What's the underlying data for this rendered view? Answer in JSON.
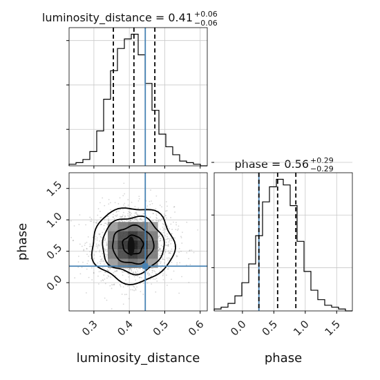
{
  "chart_data": [
    {
      "type": "histogram",
      "panel": "luminosity_distance-marginal",
      "title": {
        "param": "luminosity_distance",
        "median": "0.41",
        "plus": "+0.06",
        "minus": "−0.06"
      },
      "xlim": [
        0.23,
        0.62
      ],
      "bin_edges": [
        0.23,
        0.2495,
        0.269,
        0.2885,
        0.308,
        0.3275,
        0.347,
        0.3665,
        0.386,
        0.4055,
        0.425,
        0.4445,
        0.464,
        0.4835,
        0.503,
        0.5225,
        0.542,
        0.5615,
        0.581,
        0.6005,
        0.62
      ],
      "counts": [
        1,
        2,
        4,
        9,
        22,
        42,
        60,
        74,
        80,
        83,
        70,
        52,
        35,
        20,
        12,
        7,
        3,
        2,
        1,
        0
      ],
      "quantiles": [
        0.355,
        0.413,
        0.472
      ],
      "truth": 0.445,
      "yticks": [
        23,
        51,
        79
      ],
      "yticklabels": [
        "",
        "",
        ""
      ],
      "xticks": [
        0.3,
        0.4,
        0.5,
        0.6
      ],
      "xticklabels": [
        "",
        "",
        "",
        ""
      ],
      "grid": true
    },
    {
      "type": "histogram",
      "panel": "phase-marginal",
      "title": {
        "param": "phase",
        "median": "0.56",
        "plus": "+0.29",
        "minus": "−0.29"
      },
      "xlim": [
        -0.45,
        1.75
      ],
      "bin_edges": [
        -0.45,
        -0.34,
        -0.23,
        -0.12,
        -0.01,
        0.1,
        0.21,
        0.32,
        0.43,
        0.54,
        0.65,
        0.76,
        0.87,
        0.98,
        1.09,
        1.2,
        1.31,
        1.42,
        1.53,
        1.64,
        1.75
      ],
      "counts": [
        1,
        2,
        4,
        8,
        15,
        25,
        40,
        58,
        66,
        70,
        67,
        56,
        37,
        21,
        11,
        6,
        3,
        2,
        1,
        0
      ],
      "quantiles": [
        0.262,
        0.56,
        0.85
      ],
      "truth": 0.262,
      "yticks": [
        23,
        51,
        79
      ],
      "yticklabels": [
        "",
        "",
        ""
      ],
      "xticks": [
        0.0,
        0.5,
        1.0,
        1.5
      ],
      "xticklabels": [
        "0.0",
        "0.5",
        "1.0",
        "1.5"
      ],
      "xlabel": "phase",
      "grid": true
    },
    {
      "type": "scatter",
      "panel": "2d-posterior",
      "x_param": "luminosity_distance",
      "y_param": "phase",
      "xlim": [
        0.23,
        0.62
      ],
      "ylim": [
        -0.45,
        1.75
      ],
      "xticks": [
        0.3,
        0.4,
        0.5,
        0.6
      ],
      "xticklabels": [
        "0.3",
        "0.4",
        "0.5",
        "0.6"
      ],
      "yticks": [
        0.0,
        0.5,
        1.0,
        1.5
      ],
      "yticklabels": [
        "0.0",
        "0.5",
        "1.0",
        "1.5"
      ],
      "xlabel": "luminosity_distance",
      "ylabel": "phase",
      "center": [
        0.41,
        0.6
      ],
      "sigma": [
        0.058,
        0.3
      ],
      "contour_levels": [
        0.5,
        1.0,
        1.5,
        2.0
      ],
      "truth": [
        0.445,
        0.262
      ],
      "grid": true
    }
  ],
  "colors": {
    "truth": "#4682b4",
    "hist": "#000000",
    "grid": "#c8c8c8",
    "points": "#888888"
  }
}
